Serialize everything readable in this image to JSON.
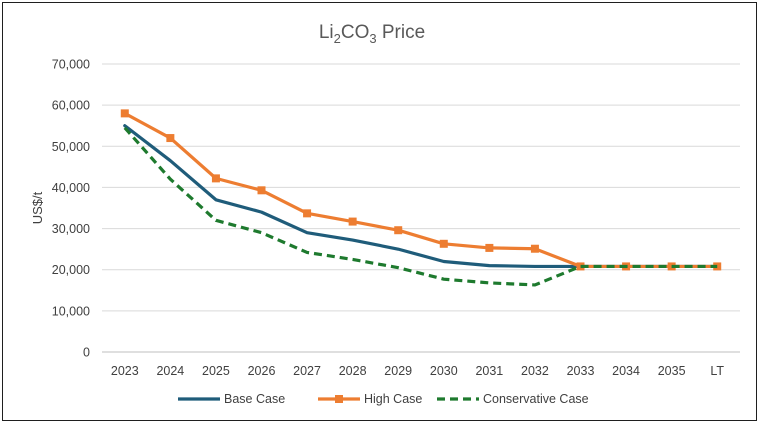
{
  "chart_data": {
    "type": "line",
    "title": {
      "base": "Li",
      "sub1": "2",
      "mid": "CO",
      "sub2": "3",
      "tail": " Price"
    },
    "ylabel": "US$/t",
    "xlabel": "",
    "categories": [
      "2023",
      "2024",
      "2025",
      "2026",
      "2027",
      "2028",
      "2029",
      "2030",
      "2031",
      "2032",
      "2033",
      "2034",
      "2035",
      "LT"
    ],
    "ylim": [
      0,
      70000
    ],
    "yticks": [
      0,
      10000,
      20000,
      30000,
      40000,
      50000,
      60000,
      70000
    ],
    "ytick_labels": [
      "0",
      "10,000",
      "20,000",
      "30,000",
      "40,000",
      "50,000",
      "60,000",
      "70,000"
    ],
    "grid": true,
    "legend_position": "bottom",
    "series": [
      {
        "name": "Base Case",
        "color": "#1f5c7a",
        "style": "solid",
        "marker": "none",
        "values": [
          55000,
          46500,
          37000,
          34000,
          29000,
          27200,
          25000,
          22000,
          21000,
          20800,
          20800,
          20800,
          20800,
          20800
        ]
      },
      {
        "name": "High Case",
        "color": "#ed7d31",
        "style": "solid",
        "marker": "square",
        "values": [
          58000,
          52000,
          42200,
          39300,
          33700,
          31700,
          29600,
          26300,
          25300,
          25100,
          20800,
          20800,
          20800,
          20800
        ]
      },
      {
        "name": "Conservative Case",
        "color": "#1e7a2e",
        "style": "dashed",
        "marker": "none",
        "values": [
          54500,
          42000,
          32000,
          29000,
          24200,
          22500,
          20500,
          17700,
          16800,
          16300,
          20800,
          20800,
          20800,
          20800
        ]
      }
    ]
  }
}
